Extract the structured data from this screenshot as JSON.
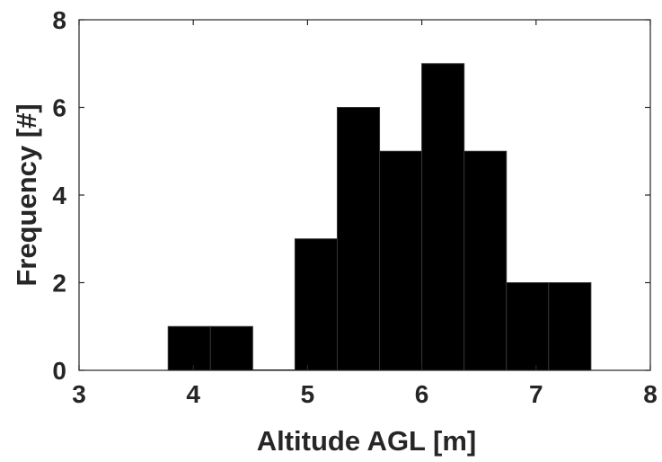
{
  "chart_data": {
    "type": "bar",
    "title": "",
    "xlabel": "Altitude AGL [m]",
    "ylabel": "Frequency [#]",
    "xlim": [
      3,
      8
    ],
    "ylim": [
      0,
      8
    ],
    "xticks": [
      "3",
      "4",
      "5",
      "6",
      "7",
      "8"
    ],
    "yticks": [
      "0",
      "2",
      "4",
      "6",
      "8"
    ],
    "grid": false,
    "bin_edges": [
      3.78,
      4.15,
      4.52,
      4.89,
      5.26,
      5.63,
      6.0,
      6.37,
      6.74,
      7.11,
      7.48
    ],
    "values": [
      1,
      1,
      0,
      3,
      6,
      5,
      7,
      5,
      2,
      2
    ],
    "colors": {
      "bar_fill": "#000000",
      "bar_edge": "#333333",
      "axis": "#262626"
    }
  }
}
